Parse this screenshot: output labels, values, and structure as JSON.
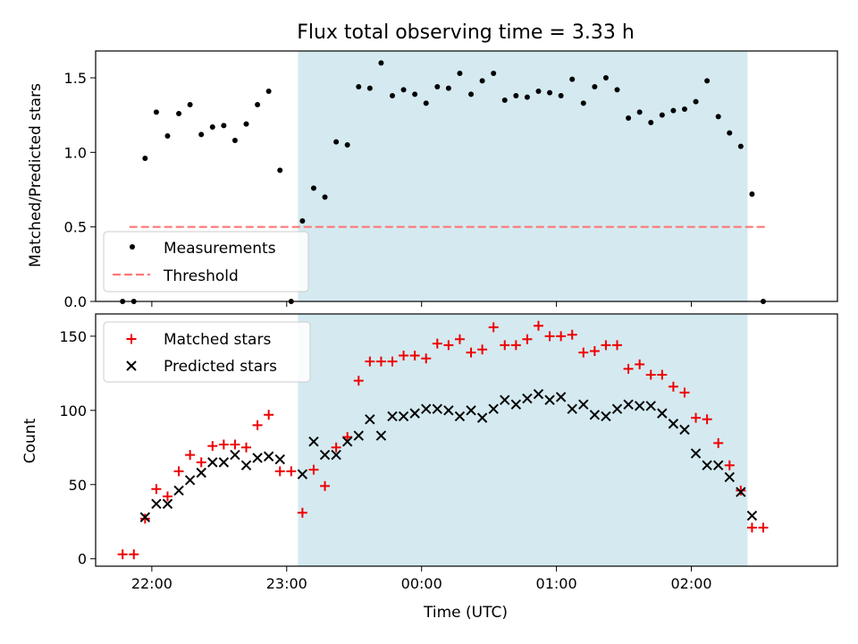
{
  "colors": {
    "shade": "#d4eaf0",
    "threshold": "#ff7777",
    "matched": "#ee0000",
    "predicted": "#000000",
    "measurement": "#000000"
  },
  "chart_data": [
    {
      "type": "scatter",
      "title": "Flux total observing time = 3.33 h",
      "xlabel": "",
      "ylabel": "Matched/Predicted stars",
      "ylim": [
        0,
        1.68
      ],
      "yticks": [
        0.0,
        0.5,
        1.0,
        1.5
      ],
      "ytick_labels": [
        "0.0",
        "0.5",
        "1.0",
        "1.5"
      ],
      "xtick_labels_shown": false,
      "shaded_interval": [
        "23:05",
        "02:25"
      ],
      "legend": {
        "placement": "lower-left",
        "entries": [
          "Measurements",
          "Threshold"
        ]
      },
      "threshold": {
        "name": "Threshold",
        "value": 0.5,
        "x_start": "21:50",
        "x_end": "02:33"
      },
      "series": [
        {
          "name": "Measurements",
          "marker": "dot",
          "points": [
            [
              "21:47",
              0.0
            ],
            [
              "21:52",
              0.0
            ],
            [
              "21:57",
              0.96
            ],
            [
              "22:02",
              1.27
            ],
            [
              "22:07",
              1.11
            ],
            [
              "22:12",
              1.26
            ],
            [
              "22:17",
              1.32
            ],
            [
              "22:22",
              1.12
            ],
            [
              "22:27",
              1.17
            ],
            [
              "22:32",
              1.18
            ],
            [
              "22:37",
              1.08
            ],
            [
              "22:42",
              1.19
            ],
            [
              "22:47",
              1.32
            ],
            [
              "22:52",
              1.41
            ],
            [
              "22:57",
              0.88
            ],
            [
              "23:02",
              0.0
            ],
            [
              "23:07",
              0.54
            ],
            [
              "23:12",
              0.76
            ],
            [
              "23:17",
              0.7
            ],
            [
              "23:22",
              1.07
            ],
            [
              "23:27",
              1.05
            ],
            [
              "23:32",
              1.44
            ],
            [
              "23:37",
              1.43
            ],
            [
              "23:42",
              1.6
            ],
            [
              "23:47",
              1.38
            ],
            [
              "23:52",
              1.42
            ],
            [
              "23:57",
              1.39
            ],
            [
              "00:02",
              1.33
            ],
            [
              "00:07",
              1.44
            ],
            [
              "00:12",
              1.43
            ],
            [
              "00:17",
              1.53
            ],
            [
              "00:22",
              1.39
            ],
            [
              "00:27",
              1.48
            ],
            [
              "00:32",
              1.53
            ],
            [
              "00:37",
              1.35
            ],
            [
              "00:42",
              1.38
            ],
            [
              "00:47",
              1.37
            ],
            [
              "00:52",
              1.41
            ],
            [
              "00:57",
              1.4
            ],
            [
              "01:02",
              1.38
            ],
            [
              "01:07",
              1.49
            ],
            [
              "01:12",
              1.33
            ],
            [
              "01:17",
              1.44
            ],
            [
              "01:22",
              1.5
            ],
            [
              "01:27",
              1.42
            ],
            [
              "01:32",
              1.23
            ],
            [
              "01:37",
              1.27
            ],
            [
              "01:42",
              1.2
            ],
            [
              "01:47",
              1.25
            ],
            [
              "01:52",
              1.28
            ],
            [
              "01:57",
              1.29
            ],
            [
              "02:02",
              1.34
            ],
            [
              "02:07",
              1.48
            ],
            [
              "02:12",
              1.24
            ],
            [
              "02:17",
              1.13
            ],
            [
              "02:22",
              1.04
            ],
            [
              "02:27",
              0.72
            ],
            [
              "02:32",
              0.0
            ]
          ]
        }
      ]
    },
    {
      "type": "scatter",
      "title": "",
      "xlabel": "Time (UTC)",
      "ylabel": "Count",
      "ylim": [
        -5,
        165
      ],
      "yticks": [
        0,
        50,
        100,
        150
      ],
      "ytick_labels": [
        "0",
        "50",
        "100",
        "150"
      ],
      "xlim": [
        "21:35",
        "03:05"
      ],
      "xticks": [
        "22:00",
        "23:00",
        "00:00",
        "01:00",
        "02:00"
      ],
      "xtick_labels": [
        "22:00",
        "23:00",
        "00:00",
        "01:00",
        "02:00"
      ],
      "shaded_interval": [
        "23:05",
        "02:25"
      ],
      "legend": {
        "placement": "top-left",
        "entries": [
          "Matched stars",
          "Predicted stars"
        ]
      },
      "series": [
        {
          "name": "Matched stars",
          "marker": "plus",
          "points": [
            [
              "21:47",
              3
            ],
            [
              "21:52",
              3
            ],
            [
              "21:57",
              27
            ],
            [
              "22:02",
              47
            ],
            [
              "22:07",
              42
            ],
            [
              "22:12",
              59
            ],
            [
              "22:17",
              70
            ],
            [
              "22:22",
              65
            ],
            [
              "22:27",
              76
            ],
            [
              "22:32",
              77
            ],
            [
              "22:37",
              77
            ],
            [
              "22:42",
              75
            ],
            [
              "22:47",
              90
            ],
            [
              "22:52",
              97
            ],
            [
              "22:57",
              59
            ],
            [
              "23:02",
              59
            ],
            [
              "23:07",
              31
            ],
            [
              "23:12",
              60
            ],
            [
              "23:17",
              49
            ],
            [
              "23:22",
              75
            ],
            [
              "23:27",
              82
            ],
            [
              "23:32",
              120
            ],
            [
              "23:37",
              133
            ],
            [
              "23:42",
              133
            ],
            [
              "23:47",
              133
            ],
            [
              "23:52",
              137
            ],
            [
              "23:57",
              137
            ],
            [
              "00:02",
              135
            ],
            [
              "00:07",
              145
            ],
            [
              "00:12",
              144
            ],
            [
              "00:17",
              148
            ],
            [
              "00:22",
              139
            ],
            [
              "00:27",
              141
            ],
            [
              "00:32",
              156
            ],
            [
              "00:37",
              144
            ],
            [
              "00:42",
              144
            ],
            [
              "00:47",
              148
            ],
            [
              "00:52",
              157
            ],
            [
              "00:57",
              150
            ],
            [
              "01:02",
              150
            ],
            [
              "01:07",
              151
            ],
            [
              "01:12",
              139
            ],
            [
              "01:17",
              140
            ],
            [
              "01:22",
              144
            ],
            [
              "01:27",
              144
            ],
            [
              "01:32",
              128
            ],
            [
              "01:37",
              131
            ],
            [
              "01:42",
              124
            ],
            [
              "01:47",
              124
            ],
            [
              "01:52",
              116
            ],
            [
              "01:57",
              112
            ],
            [
              "02:02",
              95
            ],
            [
              "02:07",
              94
            ],
            [
              "02:12",
              78
            ],
            [
              "02:17",
              63
            ],
            [
              "02:22",
              46
            ],
            [
              "02:27",
              21
            ],
            [
              "02:32",
              21
            ]
          ]
        },
        {
          "name": "Predicted stars",
          "marker": "x",
          "points": [
            [
              "21:57",
              28
            ],
            [
              "22:02",
              37
            ],
            [
              "22:07",
              37
            ],
            [
              "22:12",
              46
            ],
            [
              "22:17",
              53
            ],
            [
              "22:22",
              58
            ],
            [
              "22:27",
              65
            ],
            [
              "22:32",
              65
            ],
            [
              "22:37",
              70
            ],
            [
              "22:42",
              63
            ],
            [
              "22:47",
              68
            ],
            [
              "22:52",
              69
            ],
            [
              "22:57",
              67
            ],
            [
              "23:07",
              57
            ],
            [
              "23:12",
              79
            ],
            [
              "23:17",
              70
            ],
            [
              "23:22",
              70
            ],
            [
              "23:27",
              79
            ],
            [
              "23:32",
              83
            ],
            [
              "23:37",
              94
            ],
            [
              "23:42",
              83
            ],
            [
              "23:47",
              96
            ],
            [
              "23:52",
              96
            ],
            [
              "23:57",
              98
            ],
            [
              "00:02",
              101
            ],
            [
              "00:07",
              101
            ],
            [
              "00:12",
              100
            ],
            [
              "00:17",
              96
            ],
            [
              "00:22",
              100
            ],
            [
              "00:27",
              95
            ],
            [
              "00:32",
              101
            ],
            [
              "00:37",
              107
            ],
            [
              "00:42",
              104
            ],
            [
              "00:47",
              108
            ],
            [
              "00:52",
              111
            ],
            [
              "00:57",
              107
            ],
            [
              "01:02",
              109
            ],
            [
              "01:07",
              101
            ],
            [
              "01:12",
              104
            ],
            [
              "01:17",
              97
            ],
            [
              "01:22",
              96
            ],
            [
              "01:27",
              101
            ],
            [
              "01:32",
              104
            ],
            [
              "01:37",
              103
            ],
            [
              "01:42",
              103
            ],
            [
              "01:47",
              98
            ],
            [
              "01:52",
              91
            ],
            [
              "01:57",
              87
            ],
            [
              "02:02",
              71
            ],
            [
              "02:07",
              63
            ],
            [
              "02:12",
              63
            ],
            [
              "02:17",
              55
            ],
            [
              "02:22",
              45
            ],
            [
              "02:27",
              29
            ]
          ]
        }
      ]
    }
  ]
}
